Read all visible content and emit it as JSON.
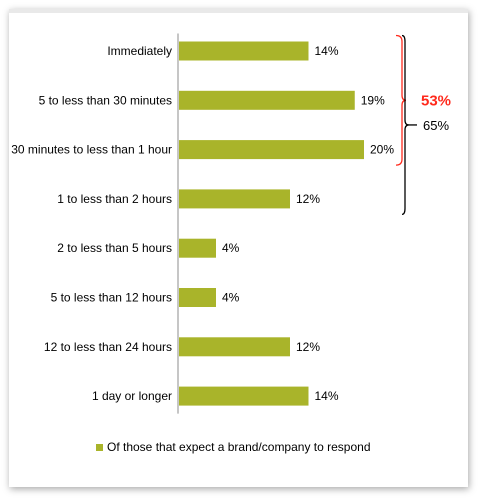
{
  "chart_data": {
    "type": "bar",
    "orientation": "horizontal",
    "categories": [
      "Immediately",
      "5 to less than 30 minutes",
      "30 minutes to less than 1 hour",
      "1  to less than 2 hours",
      "2 to less than 5 hours",
      "5 to less than 12 hours",
      "12 to less than 24 hours",
      "1 day or longer"
    ],
    "values": [
      14,
      19,
      20,
      12,
      4,
      4,
      12,
      14
    ],
    "value_labels": [
      "14%",
      "19%",
      "20%",
      "12%",
      "4%",
      "4%",
      "12%",
      "14%"
    ],
    "series": [
      {
        "name": "Of those that expect a brand/company to respond",
        "values": [
          14,
          19,
          20,
          12,
          4,
          4,
          12,
          14
        ]
      }
    ],
    "bar_color": "#a9b42a",
    "legend": {
      "label": "Of those that expect a brand/company to respond",
      "placement": "bottom"
    },
    "annotations": [
      {
        "label": "53%",
        "color": "#ff2a1c",
        "covers": [
          0,
          1,
          2
        ]
      },
      {
        "label": "65%",
        "color": "#000000",
        "covers": [
          0,
          1,
          2,
          3
        ]
      }
    ],
    "grid": false
  }
}
